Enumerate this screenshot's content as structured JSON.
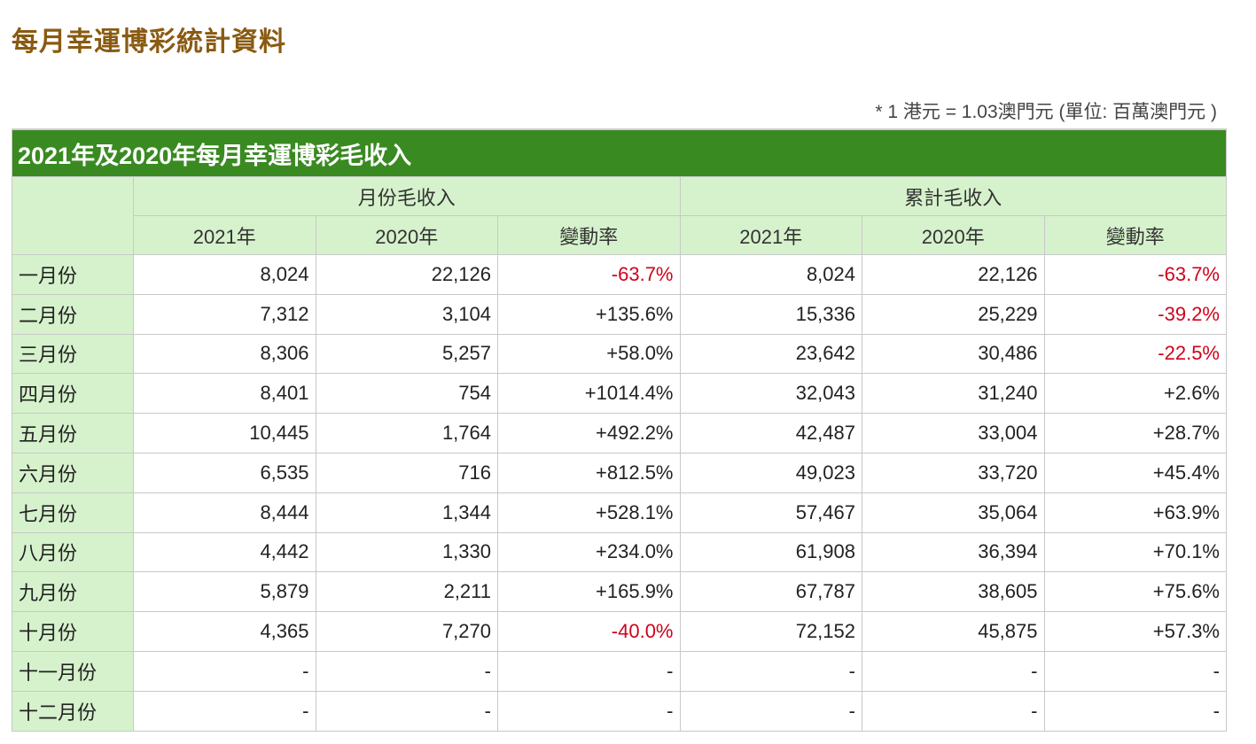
{
  "page_title": "每月幸運博彩統計資料",
  "note": "* 1 港元 = 1.03澳門元 (單位: 百萬澳門元 )",
  "table": {
    "caption": "2021年及2020年每月幸運博彩毛收入",
    "groups": [
      "月份毛收入",
      "累計毛收入"
    ],
    "subheaders": [
      "2021年",
      "2020年",
      "變動率",
      "2021年",
      "2020年",
      "變動率"
    ],
    "rows": [
      {
        "month": "一月份",
        "values": [
          "8,024",
          "22,126",
          "-63.7%",
          "8,024",
          "22,126",
          "-63.7%"
        ]
      },
      {
        "month": "二月份",
        "values": [
          "7,312",
          "3,104",
          "+135.6%",
          "15,336",
          "25,229",
          "-39.2%"
        ]
      },
      {
        "month": "三月份",
        "values": [
          "8,306",
          "5,257",
          "+58.0%",
          "23,642",
          "30,486",
          "-22.5%"
        ]
      },
      {
        "month": "四月份",
        "values": [
          "8,401",
          "754",
          "+1014.4%",
          "32,043",
          "31,240",
          "+2.6%"
        ]
      },
      {
        "month": "五月份",
        "values": [
          "10,445",
          "1,764",
          "+492.2%",
          "42,487",
          "33,004",
          "+28.7%"
        ]
      },
      {
        "month": "六月份",
        "values": [
          "6,535",
          "716",
          "+812.5%",
          "49,023",
          "33,720",
          "+45.4%"
        ]
      },
      {
        "month": "七月份",
        "values": [
          "8,444",
          "1,344",
          "+528.1%",
          "57,467",
          "35,064",
          "+63.9%"
        ]
      },
      {
        "month": "八月份",
        "values": [
          "4,442",
          "1,330",
          "+234.0%",
          "61,908",
          "36,394",
          "+70.1%"
        ]
      },
      {
        "month": "九月份",
        "values": [
          "5,879",
          "2,211",
          "+165.9%",
          "67,787",
          "38,605",
          "+75.6%"
        ]
      },
      {
        "month": "十月份",
        "values": [
          "4,365",
          "7,270",
          "-40.0%",
          "72,152",
          "45,875",
          "+57.3%"
        ]
      },
      {
        "month": "十一月份",
        "values": [
          "-",
          "-",
          "-",
          "-",
          "-",
          "-"
        ]
      },
      {
        "month": "十二月份",
        "values": [
          "-",
          "-",
          "-",
          "-",
          "-",
          "-"
        ]
      }
    ]
  },
  "colors": {
    "header_green": "#3a8a22",
    "light_green": "#d6f2cc",
    "negative": "#d0021b",
    "title": "#8a5a12"
  }
}
